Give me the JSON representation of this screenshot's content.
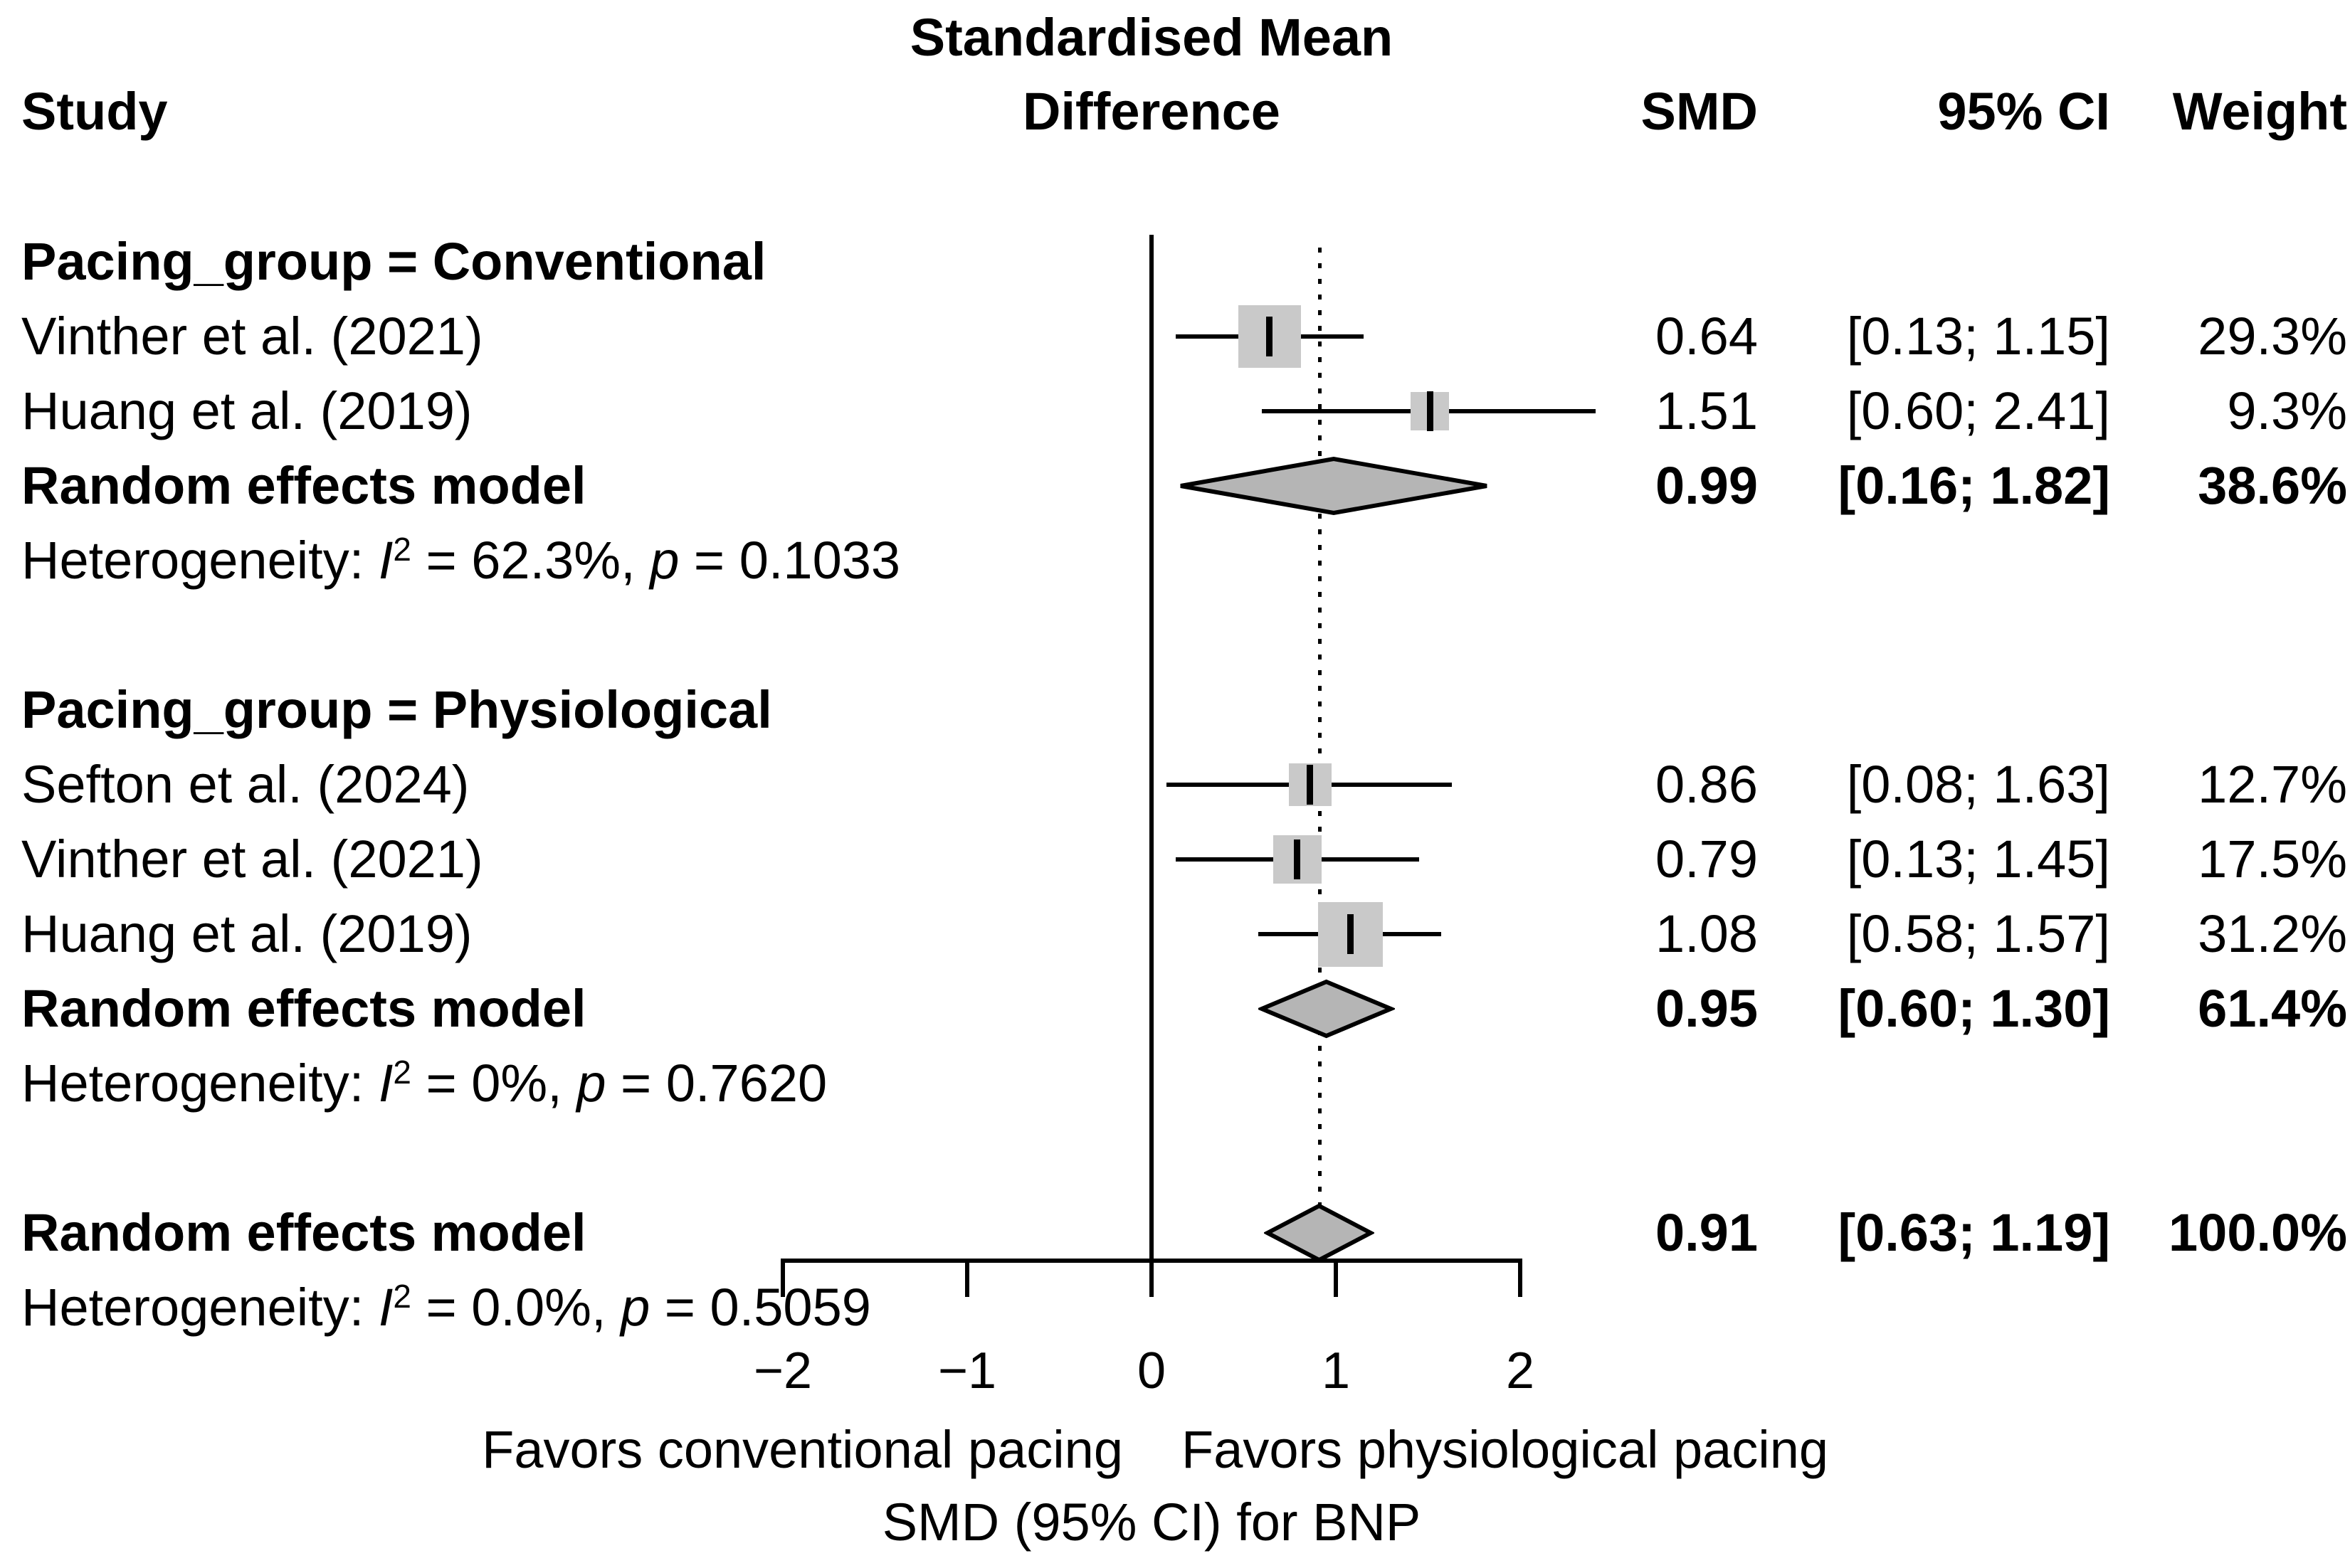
{
  "chart_data": {
    "type": "forest",
    "title": {
      "line1": "Standardised Mean",
      "line2": "Difference"
    },
    "columns": {
      "study": "Study",
      "smd": "SMD",
      "ci": "95% CI",
      "weight": "Weight"
    },
    "x_axis": {
      "ticks": [
        -2,
        -1,
        0,
        1,
        2
      ],
      "tick_labels": [
        "−2",
        "−1",
        "0",
        "1",
        "2"
      ],
      "ref_line": 0,
      "overall_dotted_line": 0.91,
      "xlim": [
        -2,
        2
      ]
    },
    "footer": {
      "favors_left": "Favors conventional pacing",
      "favors_right": "Favors physiological pacing",
      "xlabel": "SMD (95% CI) for BNP"
    },
    "colors": {
      "square": "#c9c9c9",
      "diamond": "#b5b5b5",
      "line": "#000000"
    },
    "groups": [
      {
        "label": "Pacing_group = Conventional",
        "studies": [
          {
            "name": "Vinther et al. (2021)",
            "smd": 0.64,
            "lo": 0.13,
            "hi": 1.15,
            "weight": 29.3,
            "smd_text": "0.64",
            "ci_text": "[0.13; 1.15]",
            "weight_text": "29.3%"
          },
          {
            "name": "Huang et al. (2019)",
            "smd": 1.51,
            "lo": 0.6,
            "hi": 2.41,
            "weight": 9.3,
            "smd_text": "1.51",
            "ci_text": "[0.60; 2.41]",
            "weight_text": "9.3%"
          }
        ],
        "pooled": {
          "name": "Random effects model",
          "smd": 0.99,
          "lo": 0.16,
          "hi": 1.82,
          "smd_text": "0.99",
          "ci_text": "[0.16; 1.82]",
          "weight_text": "38.6%"
        },
        "heterogeneity": {
          "pre": "Heterogeneity: ",
          "i": "I",
          "sup": "2",
          "mid": " = 62.3%, ",
          "p": "p",
          "post": " = 0.1033"
        }
      },
      {
        "label": "Pacing_group = Physiological",
        "studies": [
          {
            "name": "Sefton et al. (2024)",
            "smd": 0.86,
            "lo": 0.08,
            "hi": 1.63,
            "weight": 12.7,
            "smd_text": "0.86",
            "ci_text": "[0.08; 1.63]",
            "weight_text": "12.7%"
          },
          {
            "name": "Vinther et al. (2021)",
            "smd": 0.79,
            "lo": 0.13,
            "hi": 1.45,
            "weight": 17.5,
            "smd_text": "0.79",
            "ci_text": "[0.13; 1.45]",
            "weight_text": "17.5%"
          },
          {
            "name": "Huang et al. (2019)",
            "smd": 1.08,
            "lo": 0.58,
            "hi": 1.57,
            "weight": 31.2,
            "smd_text": "1.08",
            "ci_text": "[0.58; 1.57]",
            "weight_text": "31.2%"
          }
        ],
        "pooled": {
          "name": "Random effects model",
          "smd": 0.95,
          "lo": 0.6,
          "hi": 1.3,
          "smd_text": "0.95",
          "ci_text": "[0.60; 1.30]",
          "weight_text": "61.4%"
        },
        "heterogeneity": {
          "pre": "Heterogeneity: ",
          "i": "I",
          "sup": "2",
          "mid": " = 0%, ",
          "p": "p",
          "post": " = 0.7620"
        }
      }
    ],
    "overall": {
      "pooled": {
        "name": "Random effects model",
        "smd": 0.91,
        "lo": 0.63,
        "hi": 1.19,
        "smd_text": "0.91",
        "ci_text": "[0.63; 1.19]",
        "weight_text": "100.0%"
      },
      "heterogeneity": {
        "pre": "Heterogeneity: ",
        "i": "I",
        "sup": "2",
        "mid": " = 0.0%, ",
        "p": "p",
        "post": " = 0.5059"
      }
    }
  }
}
